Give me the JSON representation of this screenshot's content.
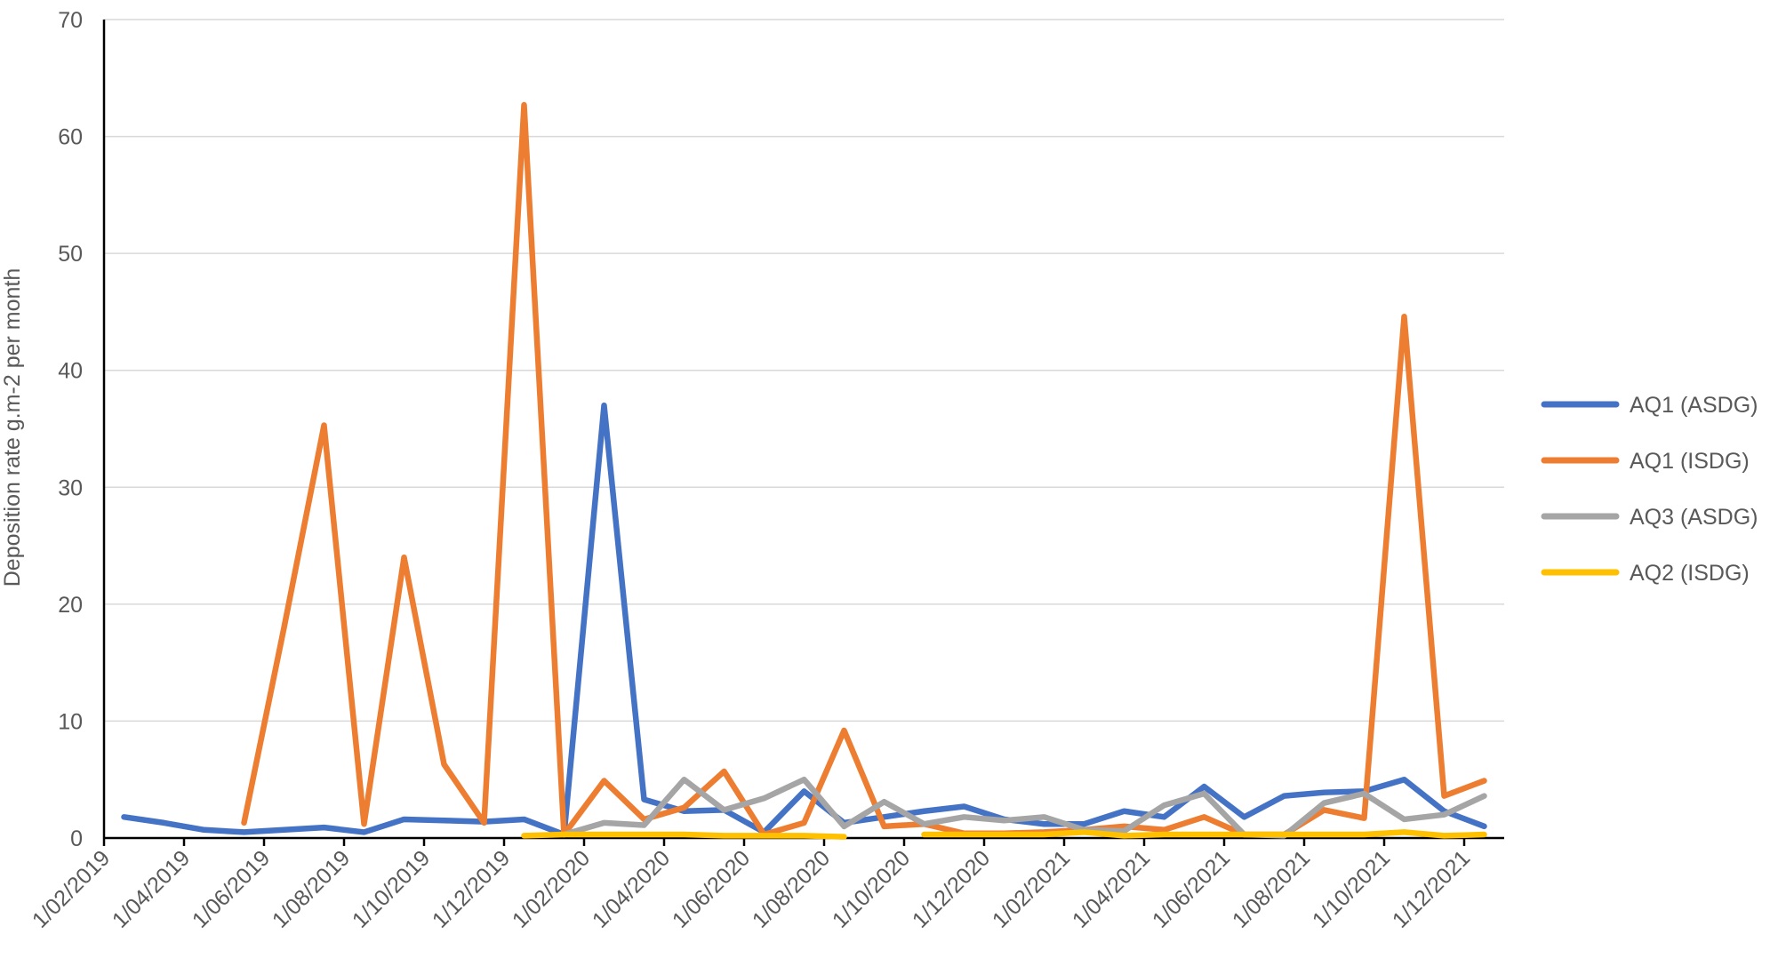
{
  "chart_data": {
    "type": "line",
    "y_label": "Deposition rate g.m-2  per month",
    "categories": [
      "1/02/2019",
      null,
      "1/04/2019",
      null,
      "1/06/2019",
      null,
      "1/08/2019",
      null,
      "1/10/2019",
      null,
      "1/12/2019",
      null,
      "1/02/2020",
      null,
      "1/04/2020",
      null,
      "1/06/2020",
      null,
      "1/08/2020",
      null,
      "1/10/2020",
      null,
      "1/12/2020",
      null,
      "1/02/2021",
      null,
      "1/04/2021",
      null,
      "1/06/2021",
      null,
      "1/08/2021",
      null,
      "1/10/2021",
      null,
      "1/12/2021"
    ],
    "series": [
      {
        "name": "AQ1 (ASDG)",
        "color": "#4472c4",
        "values": [
          1.8,
          1.3,
          0.7,
          0.5,
          0.7,
          0.9,
          0.5,
          1.6,
          1.5,
          1.4,
          1.6,
          0.3,
          37,
          3.3,
          2.3,
          2.4,
          0.5,
          4,
          1.3,
          1.8,
          2.3,
          2.7,
          1.6,
          1.2,
          1.2,
          2.3,
          1.8,
          4.4,
          1.8,
          3.6,
          3.9,
          4,
          5,
          2.3,
          1
        ]
      },
      {
        "name": "AQ1 (ISDG)",
        "color": "#ed7d31",
        "values": [
          null,
          null,
          null,
          1.3,
          18,
          35.3,
          1.2,
          24,
          6.3,
          1.3,
          62.7,
          0.3,
          4.9,
          1.6,
          2.6,
          5.7,
          0.3,
          1.3,
          9.2,
          1,
          1.2,
          0.4,
          0.4,
          0.5,
          0.7,
          1,
          0.7,
          1.8,
          0.3,
          0.3,
          2.4,
          1.7,
          44.6,
          3.6,
          4.9
        ]
      },
      {
        "name": "AQ3 (ASDG)",
        "color": "#a5a5a5",
        "values": [
          null,
          null,
          null,
          null,
          null,
          null,
          null,
          null,
          null,
          null,
          null,
          0.3,
          1.3,
          1.1,
          5,
          2.4,
          3.4,
          5,
          1,
          3.1,
          1.2,
          1.8,
          1.5,
          1.8,
          0.7,
          0.6,
          2.8,
          3.8,
          0.3,
          0.2,
          3,
          3.8,
          1.6,
          2,
          3.6
        ]
      },
      {
        "name": "AQ2 (ISDG)",
        "color": "#ffc000",
        "values": [
          null,
          null,
          null,
          null,
          null,
          null,
          null,
          null,
          null,
          null,
          0.2,
          0.3,
          0.3,
          0.3,
          0.3,
          0.2,
          0.2,
          0.2,
          0.1,
          null,
          0.3,
          0.3,
          0.3,
          0.3,
          0.5,
          0.2,
          0.3,
          0.3,
          0.3,
          0.3,
          0.3,
          0.3,
          0.5,
          0.2,
          0.3
        ]
      }
    ],
    "ylim": [
      0,
      70
    ],
    "yticks": [
      0,
      10,
      20,
      30,
      40,
      50,
      60,
      70
    ],
    "grid": true,
    "legend": "right"
  }
}
